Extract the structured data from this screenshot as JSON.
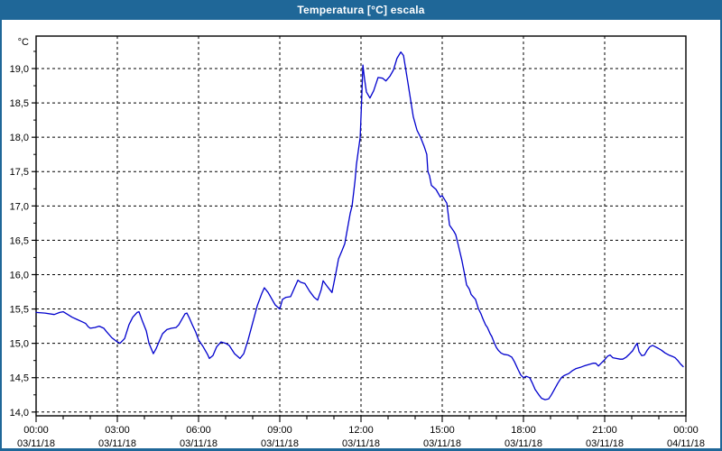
{
  "window": {
    "title": "Temperatura [°C] escala"
  },
  "colors": {
    "titlebar": "#1F6798",
    "window_border": "#1F6798",
    "series_line": "#0000CD",
    "grid": "#000000",
    "axis": "#000000",
    "background": "#FFFFFF",
    "title_text": "#FFFFFF",
    "label_text": "#000000"
  },
  "chart_data": {
    "type": "line",
    "title": "Temperatura [°C] escala",
    "grid": "dashed",
    "legend": "none",
    "y_axis": {
      "unit_label": "°C",
      "min": 14.0,
      "max": 19.47,
      "tick_step": 0.5,
      "tick_values": [
        14.0,
        14.5,
        15.0,
        15.5,
        16.0,
        16.5,
        17.0,
        17.5,
        18.0,
        18.5,
        19.0
      ],
      "tick_labels": [
        "14,0",
        "14,5",
        "15,0",
        "15,5",
        "16,0",
        "16,5",
        "17,0",
        "17,5",
        "18,0",
        "18,5",
        "19,0"
      ],
      "decimal_separator": ","
    },
    "x_axis": {
      "range_hours": [
        0,
        24
      ],
      "major_tick_hours": 3,
      "minor_tick_hours": 1,
      "major_ticks": [
        {
          "hour": 0,
          "time": "00:00",
          "date": "03/11/18"
        },
        {
          "hour": 3,
          "time": "03:00",
          "date": "03/11/18"
        },
        {
          "hour": 6,
          "time": "06:00",
          "date": "03/11/18"
        },
        {
          "hour": 9,
          "time": "09:00",
          "date": "03/11/18"
        },
        {
          "hour": 12,
          "time": "12:00",
          "date": "03/11/18"
        },
        {
          "hour": 15,
          "time": "15:00",
          "date": "03/11/18"
        },
        {
          "hour": 18,
          "time": "18:00",
          "date": "03/11/18"
        },
        {
          "hour": 21,
          "time": "21:00",
          "date": "03/11/18"
        },
        {
          "hour": 24,
          "time": "00:00",
          "date": "04/11/18"
        }
      ]
    },
    "series": [
      {
        "name": "Temperatura",
        "unit": "°C",
        "points": [
          [
            0.0,
            15.45
          ],
          [
            0.33,
            15.44
          ],
          [
            0.67,
            15.42
          ],
          [
            0.87,
            15.45
          ],
          [
            1.0,
            15.46
          ],
          [
            1.17,
            15.42
          ],
          [
            1.33,
            15.38
          ],
          [
            1.5,
            15.35
          ],
          [
            1.67,
            15.32
          ],
          [
            1.83,
            15.29
          ],
          [
            1.93,
            15.24
          ],
          [
            2.0,
            15.22
          ],
          [
            2.17,
            15.23
          ],
          [
            2.33,
            15.25
          ],
          [
            2.5,
            15.22
          ],
          [
            2.6,
            15.17
          ],
          [
            2.8,
            15.08
          ],
          [
            3.0,
            15.02
          ],
          [
            3.1,
            15.0
          ],
          [
            3.27,
            15.07
          ],
          [
            3.43,
            15.27
          ],
          [
            3.57,
            15.38
          ],
          [
            3.73,
            15.45
          ],
          [
            3.8,
            15.46
          ],
          [
            3.93,
            15.32
          ],
          [
            4.07,
            15.18
          ],
          [
            4.17,
            15.0
          ],
          [
            4.33,
            14.85
          ],
          [
            4.43,
            14.92
          ],
          [
            4.57,
            15.05
          ],
          [
            4.67,
            15.14
          ],
          [
            4.83,
            15.2
          ],
          [
            5.0,
            15.22
          ],
          [
            5.17,
            15.23
          ],
          [
            5.27,
            15.27
          ],
          [
            5.4,
            15.36
          ],
          [
            5.5,
            15.43
          ],
          [
            5.57,
            15.44
          ],
          [
            5.67,
            15.36
          ],
          [
            5.77,
            15.27
          ],
          [
            5.9,
            15.16
          ],
          [
            6.0,
            15.05
          ],
          [
            6.17,
            14.95
          ],
          [
            6.33,
            14.84
          ],
          [
            6.4,
            14.78
          ],
          [
            6.53,
            14.82
          ],
          [
            6.67,
            14.95
          ],
          [
            6.83,
            15.02
          ],
          [
            7.0,
            15.0
          ],
          [
            7.13,
            14.97
          ],
          [
            7.33,
            14.85
          ],
          [
            7.53,
            14.78
          ],
          [
            7.67,
            14.85
          ],
          [
            7.83,
            15.05
          ],
          [
            8.0,
            15.3
          ],
          [
            8.17,
            15.55
          ],
          [
            8.33,
            15.72
          ],
          [
            8.43,
            15.81
          ],
          [
            8.57,
            15.74
          ],
          [
            8.67,
            15.67
          ],
          [
            8.83,
            15.56
          ],
          [
            9.0,
            15.5
          ],
          [
            9.1,
            15.64
          ],
          [
            9.23,
            15.67
          ],
          [
            9.4,
            15.68
          ],
          [
            9.57,
            15.83
          ],
          [
            9.67,
            15.92
          ],
          [
            9.77,
            15.89
          ],
          [
            9.93,
            15.87
          ],
          [
            10.1,
            15.76
          ],
          [
            10.27,
            15.67
          ],
          [
            10.4,
            15.63
          ],
          [
            10.53,
            15.78
          ],
          [
            10.6,
            15.91
          ],
          [
            10.77,
            15.82
          ],
          [
            10.93,
            15.74
          ],
          [
            11.07,
            16.02
          ],
          [
            11.17,
            16.23
          ],
          [
            11.3,
            16.35
          ],
          [
            11.4,
            16.45
          ],
          [
            11.5,
            16.67
          ],
          [
            11.6,
            16.89
          ],
          [
            11.67,
            17.0
          ],
          [
            11.73,
            17.2
          ],
          [
            11.78,
            17.37
          ],
          [
            11.83,
            17.6
          ],
          [
            11.9,
            17.8
          ],
          [
            11.97,
            18.0
          ],
          [
            12.02,
            18.5
          ],
          [
            12.07,
            19.05
          ],
          [
            12.13,
            18.85
          ],
          [
            12.2,
            18.66
          ],
          [
            12.33,
            18.57
          ],
          [
            12.47,
            18.68
          ],
          [
            12.63,
            18.87
          ],
          [
            12.8,
            18.86
          ],
          [
            12.92,
            18.82
          ],
          [
            13.07,
            18.89
          ],
          [
            13.2,
            18.98
          ],
          [
            13.33,
            19.15
          ],
          [
            13.47,
            19.24
          ],
          [
            13.57,
            19.19
          ],
          [
            13.73,
            18.8
          ],
          [
            13.87,
            18.45
          ],
          [
            13.93,
            18.3
          ],
          [
            14.07,
            18.1
          ],
          [
            14.2,
            18.0
          ],
          [
            14.33,
            17.87
          ],
          [
            14.43,
            17.75
          ],
          [
            14.47,
            17.5
          ],
          [
            14.53,
            17.44
          ],
          [
            14.6,
            17.3
          ],
          [
            14.77,
            17.24
          ],
          [
            14.93,
            17.13
          ],
          [
            15.0,
            17.15
          ],
          [
            15.17,
            17.04
          ],
          [
            15.27,
            16.72
          ],
          [
            15.43,
            16.63
          ],
          [
            15.5,
            16.58
          ],
          [
            15.6,
            16.42
          ],
          [
            15.73,
            16.2
          ],
          [
            15.83,
            16.0
          ],
          [
            15.9,
            15.85
          ],
          [
            16.0,
            15.79
          ],
          [
            16.07,
            15.71
          ],
          [
            16.23,
            15.64
          ],
          [
            16.33,
            15.51
          ],
          [
            16.43,
            15.43
          ],
          [
            16.5,
            15.36
          ],
          [
            16.6,
            15.27
          ],
          [
            16.67,
            15.23
          ],
          [
            16.77,
            15.14
          ],
          [
            16.83,
            15.1
          ],
          [
            16.93,
            15.0
          ],
          [
            17.0,
            14.94
          ],
          [
            17.07,
            14.9
          ],
          [
            17.17,
            14.86
          ],
          [
            17.27,
            14.84
          ],
          [
            17.43,
            14.83
          ],
          [
            17.57,
            14.8
          ],
          [
            17.67,
            14.73
          ],
          [
            17.8,
            14.62
          ],
          [
            17.9,
            14.54
          ],
          [
            18.0,
            14.5
          ],
          [
            18.1,
            14.52
          ],
          [
            18.23,
            14.5
          ],
          [
            18.33,
            14.42
          ],
          [
            18.43,
            14.33
          ],
          [
            18.57,
            14.25
          ],
          [
            18.67,
            14.2
          ],
          [
            18.8,
            14.18
          ],
          [
            18.93,
            14.19
          ],
          [
            19.03,
            14.25
          ],
          [
            19.13,
            14.32
          ],
          [
            19.27,
            14.42
          ],
          [
            19.4,
            14.5
          ],
          [
            19.5,
            14.53
          ],
          [
            19.67,
            14.56
          ],
          [
            19.8,
            14.6
          ],
          [
            19.93,
            14.63
          ],
          [
            20.1,
            14.65
          ],
          [
            20.23,
            14.67
          ],
          [
            20.4,
            14.69
          ],
          [
            20.57,
            14.71
          ],
          [
            20.67,
            14.71
          ],
          [
            20.77,
            14.67
          ],
          [
            20.87,
            14.71
          ],
          [
            21.0,
            14.76
          ],
          [
            21.1,
            14.81
          ],
          [
            21.2,
            14.83
          ],
          [
            21.3,
            14.79
          ],
          [
            21.43,
            14.78
          ],
          [
            21.57,
            14.77
          ],
          [
            21.67,
            14.77
          ],
          [
            21.8,
            14.8
          ],
          [
            21.93,
            14.85
          ],
          [
            22.03,
            14.89
          ],
          [
            22.13,
            14.96
          ],
          [
            22.2,
            15.0
          ],
          [
            22.27,
            14.88
          ],
          [
            22.37,
            14.82
          ],
          [
            22.47,
            14.83
          ],
          [
            22.57,
            14.9
          ],
          [
            22.67,
            14.95
          ],
          [
            22.77,
            14.97
          ],
          [
            22.87,
            14.95
          ],
          [
            22.97,
            14.93
          ],
          [
            23.1,
            14.9
          ],
          [
            23.23,
            14.86
          ],
          [
            23.37,
            14.83
          ],
          [
            23.5,
            14.81
          ],
          [
            23.6,
            14.79
          ],
          [
            23.7,
            14.75
          ],
          [
            23.8,
            14.7
          ],
          [
            23.9,
            14.66
          ]
        ]
      }
    ]
  }
}
